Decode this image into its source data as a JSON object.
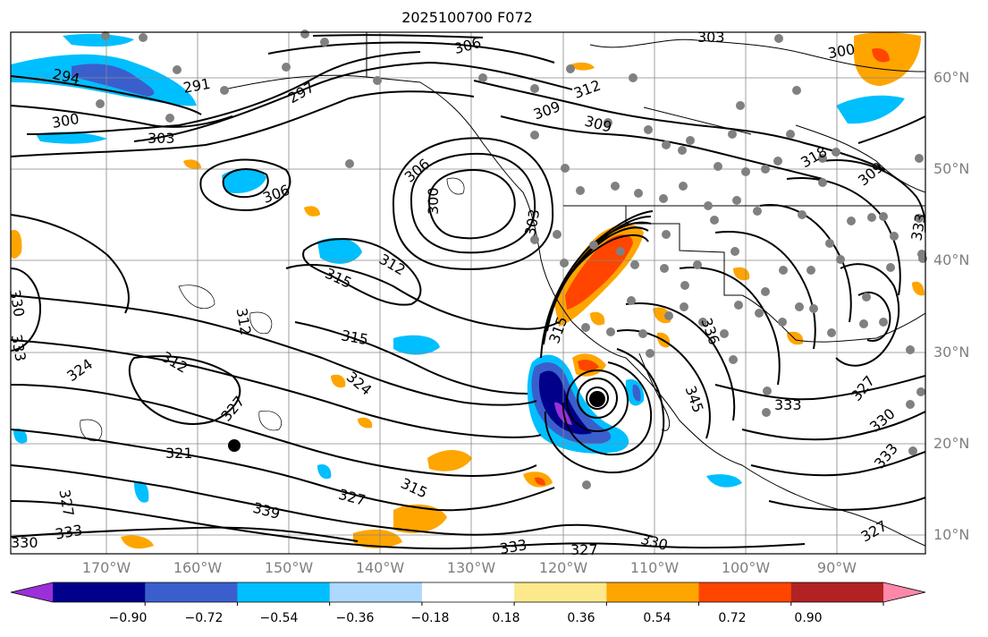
{
  "title": "2025100700 F072",
  "lat_labels": [
    {
      "text": "60°N"
    },
    {
      "text": "50°N"
    },
    {
      "text": "40°N"
    },
    {
      "text": "30°N"
    },
    {
      "text": "20°N"
    },
    {
      "text": "10°N"
    }
  ],
  "lon_labels": [
    {
      "text": "170°W"
    },
    {
      "text": "160°W"
    },
    {
      "text": "150°W"
    },
    {
      "text": "140°W"
    },
    {
      "text": "130°W"
    },
    {
      "text": "120°W"
    },
    {
      "text": "110°W"
    },
    {
      "text": "100°W"
    },
    {
      "text": "90°W"
    }
  ],
  "colorbar": {
    "colors": [
      "#9b30d8",
      "#00008b",
      "#3a5fcd",
      "#00bfff",
      "#add8ff",
      "#ffffff",
      "#fce98c",
      "#ffa500",
      "#ff4500",
      "#b22222",
      "#ff88aa"
    ],
    "tick_labels": [
      "−0.90",
      "−0.72",
      "−0.54",
      "−0.36",
      "−0.18",
      "0.18",
      "0.36",
      "0.54",
      "0.72",
      "0.90"
    ]
  },
  "contour_labels": [
    "294",
    "291",
    "297",
    "306",
    "303",
    "300",
    "303",
    "309",
    "312",
    "309",
    "306",
    "300",
    "306",
    "312",
    "315",
    "312",
    "315",
    "303",
    "315",
    "324",
    "327",
    "321",
    "327",
    "330",
    "333",
    "339",
    "327",
    "333",
    "330",
    "327",
    "333",
    "345",
    "336",
    "312",
    "315",
    "333",
    "327",
    "330",
    "333",
    "309",
    "300",
    "324",
    "330",
    "318",
    "327",
    "333"
  ]
}
